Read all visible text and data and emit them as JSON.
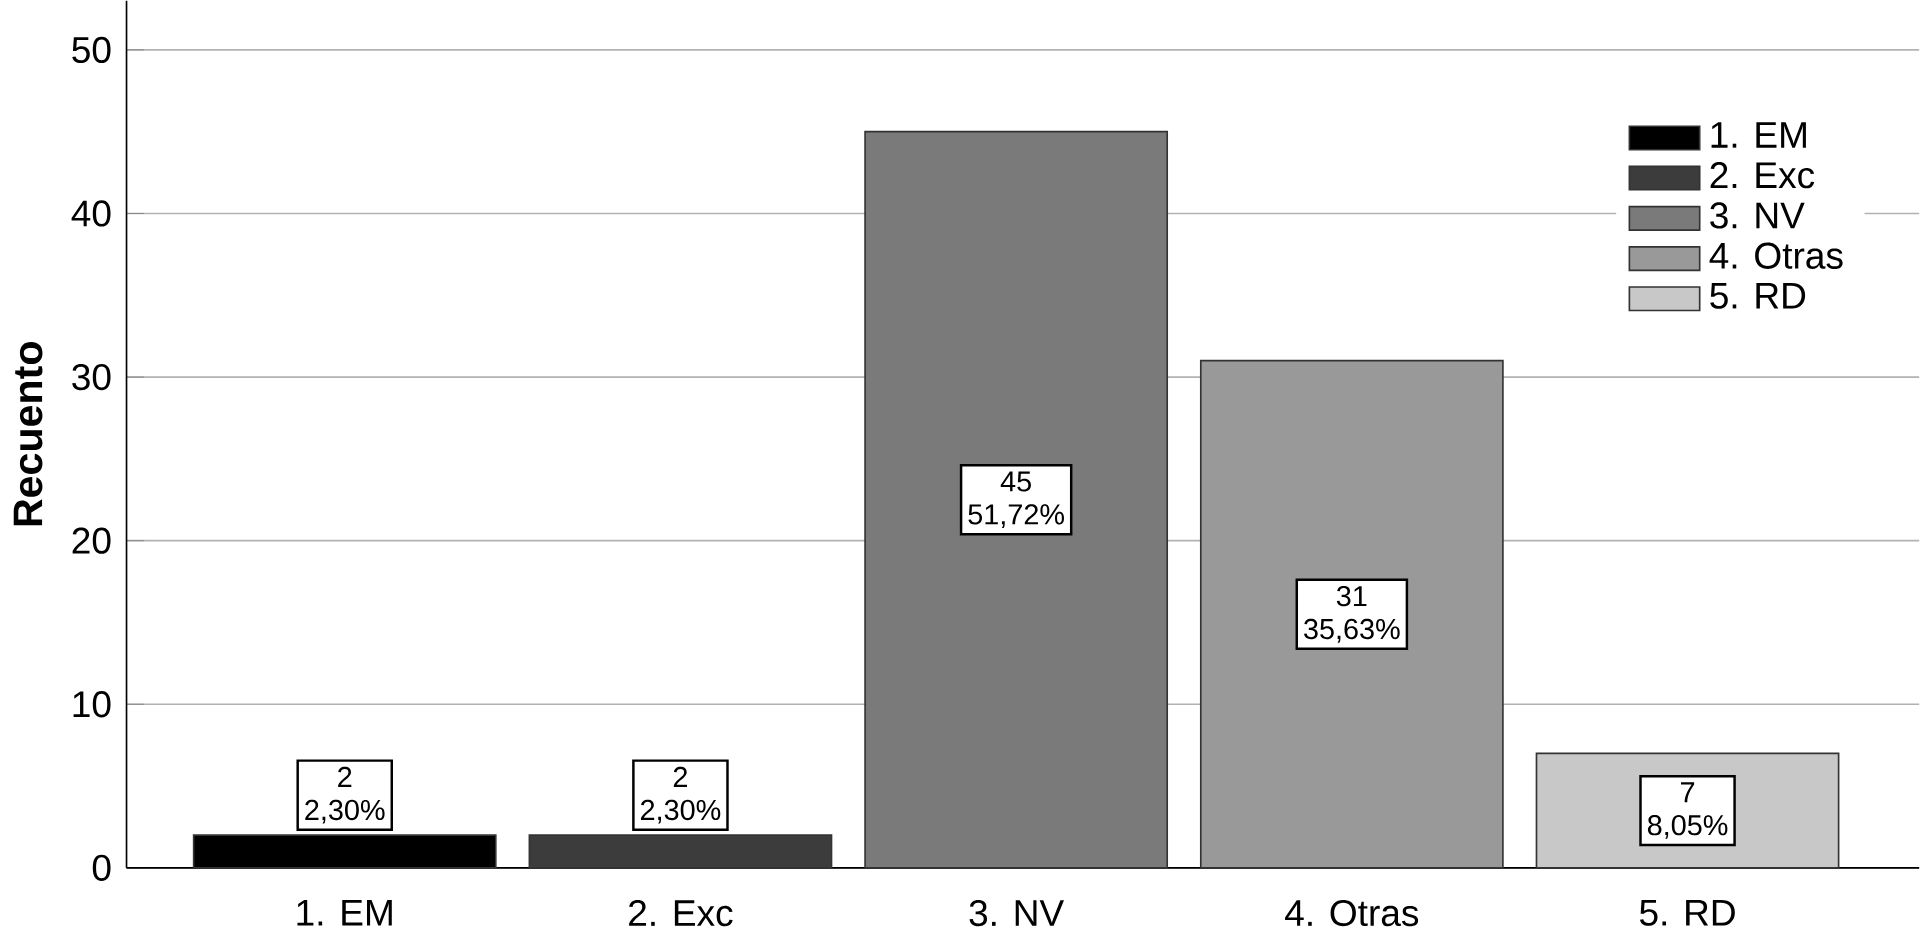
{
  "chart_data": {
    "type": "bar",
    "ylabel": "Recuento",
    "categories": [
      "1. EM",
      "2. Exc",
      "3. NV",
      "4. Otras",
      "5. RD"
    ],
    "series": [
      {
        "name": "1. EM",
        "color": "#000000",
        "values": [
          2,
          null,
          null,
          null,
          null
        ]
      },
      {
        "name": "2. Exc",
        "color": "#3c3c3c",
        "values": [
          null,
          2,
          null,
          null,
          null
        ]
      },
      {
        "name": "3. NV",
        "color": "#7a7a7a",
        "values": [
          null,
          null,
          45,
          null,
          null
        ]
      },
      {
        "name": "4. Otras",
        "color": "#999999",
        "values": [
          null,
          null,
          null,
          31,
          null
        ]
      },
      {
        "name": "5. RD",
        "color": "#c8c8c8",
        "values": [
          null,
          null,
          null,
          null,
          7
        ]
      }
    ],
    "ylim": [
      0,
      53
    ],
    "yticks": [
      0,
      10,
      20,
      30,
      40,
      50
    ],
    "grid": "y",
    "legend": "top right",
    "data_labels": true,
    "annotations": [
      "2,30%",
      "2,30%",
      "51,72%",
      "35,63%",
      "8,05%"
    ]
  }
}
